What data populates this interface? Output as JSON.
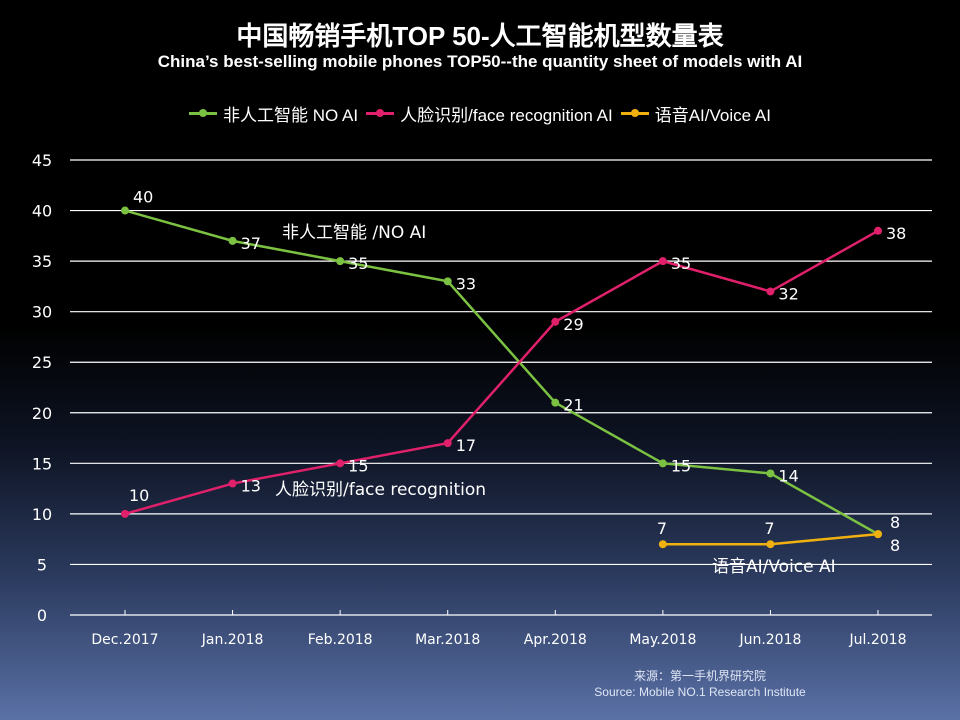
{
  "chart_data": {
    "type": "line",
    "title": "中国畅销手机TOP 50-人工智能机型数量表",
    "subtitle": "China’s best-selling mobile phones TOP50--the quantity sheet of models with AI",
    "categories": [
      "Dec.2017",
      "Jan.2018",
      "Feb.2018",
      "Mar.2018",
      "Apr.2018",
      "May.2018",
      "Jun.2018",
      "Jul.2018"
    ],
    "ylim": [
      0,
      45
    ],
    "yticks": [
      0,
      5,
      10,
      15,
      20,
      25,
      30,
      35,
      40,
      45
    ],
    "grid": true,
    "legend_position": "top",
    "series": [
      {
        "name": "非人工智能  NO AI",
        "inline_label": "非人工智能 /NO AI",
        "color": "#7cc242",
        "values": [
          40,
          37,
          35,
          33,
          21,
          15,
          14,
          8
        ]
      },
      {
        "name": "人脸识别/face recognition AI",
        "inline_label": "人脸识别/face recognition",
        "color": "#e0206a",
        "values": [
          10,
          13,
          15,
          17,
          29,
          35,
          32,
          38
        ]
      },
      {
        "name": "语音AI/Voice AI",
        "inline_label": "语音AI/Voice AI",
        "color": "#f0b010",
        "values": [
          null,
          null,
          null,
          null,
          null,
          7,
          7,
          8
        ]
      }
    ]
  },
  "source": {
    "cn": "来源：第一手机界研究院",
    "en": "Source: Mobile NO.1 Research Institute"
  }
}
